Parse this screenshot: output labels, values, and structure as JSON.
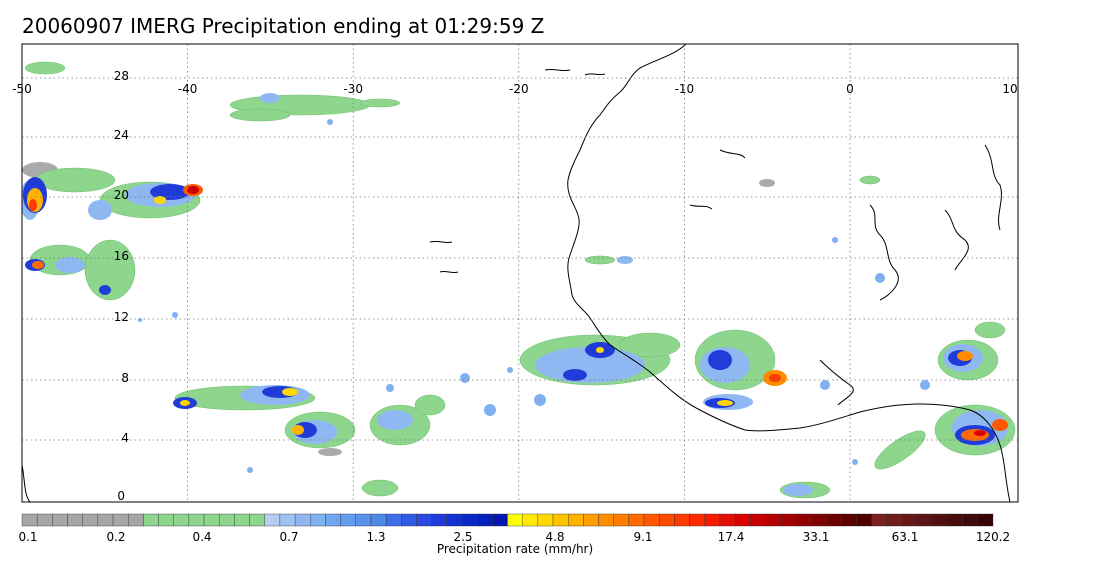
{
  "title": "20060907 IMERG Precipitation ending at 01:29:59 Z",
  "map": {
    "lon_ticks": [
      "-50",
      "-40",
      "-30",
      "-20",
      "-10",
      "0",
      "10"
    ],
    "lat_ticks": [
      "28",
      "24",
      "20",
      "16",
      "12",
      "8",
      "4",
      "0"
    ]
  },
  "colorbar": {
    "title": "Precipitation rate (mm/hr)",
    "labels": [
      "0.1",
      "0.2",
      "0.4",
      "0.7",
      "1.3",
      "2.5",
      "4.8",
      "9.1",
      "17.4",
      "33.1",
      "63.1",
      "120.2"
    ],
    "colors": [
      "#a6a6a6",
      "#a6a6a6",
      "#a6a6a6",
      "#a6a6a6",
      "#a6a6a6",
      "#a6a6a6",
      "#a6a6a6",
      "#a6a6a6",
      "#8ed68e",
      "#8ed68e",
      "#8ed68e",
      "#8ed68e",
      "#8ed68e",
      "#8ed68e",
      "#8ed68e",
      "#8ed68e",
      "#b7ccf5",
      "#9fc2f5",
      "#8fb8f2",
      "#7fb0f0",
      "#6fa6ee",
      "#619dec",
      "#5594ea",
      "#4a8be7",
      "#3d6fe6",
      "#3059e5",
      "#2a4ae0",
      "#1f3cd8",
      "#1232cf",
      "#0a28c6",
      "#0620bb",
      "#0418b0",
      "#ffff00",
      "#ffea00",
      "#ffd800",
      "#ffc400",
      "#ffb300",
      "#ffa000",
      "#ff8c00",
      "#ff7a00",
      "#ff6a00",
      "#ff5800",
      "#ff4800",
      "#ff3a00",
      "#ff2a00",
      "#f21a00",
      "#e60e00",
      "#da0000",
      "#c80000",
      "#b60000",
      "#a40000",
      "#920000",
      "#800000",
      "#6e0000",
      "#5e0000",
      "#500000",
      "#7a2020",
      "#6e1c1c",
      "#641818",
      "#5a1414",
      "#501010",
      "#480c0c",
      "#400808",
      "#380404"
    ]
  }
}
